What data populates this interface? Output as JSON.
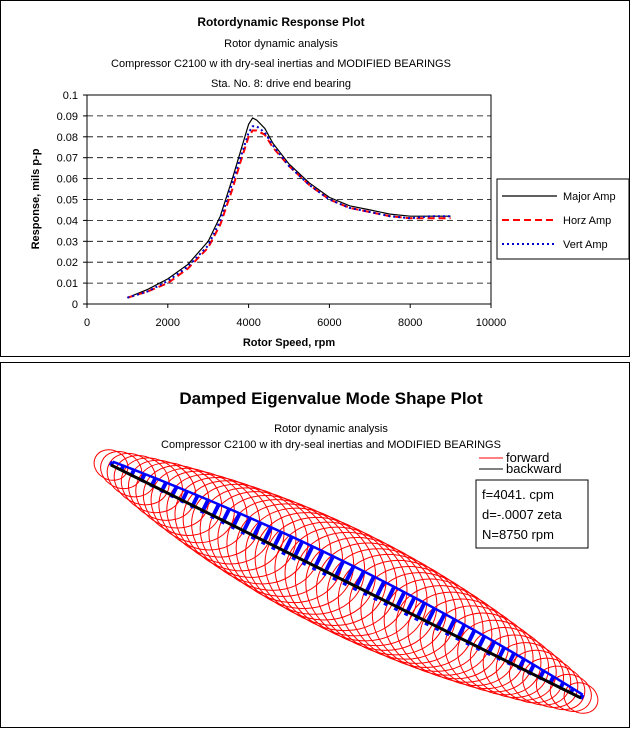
{
  "chart_data": [
    {
      "type": "line",
      "title": "Rotordynamic Response Plot",
      "subtitle_lines": [
        "Rotor dynamic analysis",
        "Compressor C2100 w ith dry-seal inertias and MODIFIED BEARINGS",
        "Sta. No. 8: drive end bearing"
      ],
      "xlabel": "Rotor Speed, rpm",
      "ylabel": "Response, mils p-p",
      "xlim": [
        0,
        10000
      ],
      "ylim": [
        0,
        0.1
      ],
      "xticks": [
        "0",
        "2000",
        "4000",
        "6000",
        "8000",
        "10000"
      ],
      "yticks": [
        "0",
        "0.01",
        "0.02",
        "0.03",
        "0.04",
        "0.05",
        "0.06",
        "0.07",
        "0.08",
        "0.09",
        "0.1"
      ],
      "grid": "horizontal dashed",
      "legend_position": "right",
      "series": [
        {
          "name": "Major Amp",
          "color": "#000000",
          "style": "solid",
          "x": [
            1000,
            1500,
            2000,
            2500,
            3000,
            3300,
            3600,
            3800,
            4000,
            4100,
            4200,
            4400,
            4600,
            5000,
            5500,
            6000,
            6500,
            7000,
            7500,
            8000,
            8500,
            9000
          ],
          "y": [
            0.003,
            0.007,
            0.012,
            0.019,
            0.03,
            0.042,
            0.06,
            0.073,
            0.086,
            0.089,
            0.088,
            0.084,
            0.077,
            0.067,
            0.058,
            0.051,
            0.047,
            0.045,
            0.043,
            0.042,
            0.042,
            0.042
          ]
        },
        {
          "name": "Horz Amp",
          "color": "#ff0000",
          "style": "dashed",
          "x": [
            1000,
            1500,
            2000,
            2500,
            3000,
            3300,
            3600,
            3800,
            4000,
            4100,
            4200,
            4400,
            4600,
            5000,
            5500,
            6000,
            6500,
            7000,
            7500,
            8000,
            8500,
            9000
          ],
          "y": [
            0.003,
            0.006,
            0.01,
            0.017,
            0.027,
            0.038,
            0.055,
            0.068,
            0.08,
            0.083,
            0.083,
            0.081,
            0.075,
            0.066,
            0.057,
            0.05,
            0.046,
            0.044,
            0.042,
            0.041,
            0.041,
            0.041
          ]
        },
        {
          "name": "Vert Amp",
          "color": "#0000cc",
          "style": "dotted",
          "x": [
            1000,
            1500,
            2000,
            2500,
            3000,
            3300,
            3600,
            3800,
            4000,
            4100,
            4200,
            4400,
            4600,
            5000,
            5500,
            6000,
            6500,
            7000,
            7500,
            8000,
            8500,
            9000
          ],
          "y": [
            0.003,
            0.006,
            0.011,
            0.018,
            0.028,
            0.04,
            0.058,
            0.07,
            0.082,
            0.085,
            0.085,
            0.082,
            0.076,
            0.066,
            0.057,
            0.05,
            0.046,
            0.044,
            0.042,
            0.041,
            0.042,
            0.042
          ]
        }
      ]
    },
    {
      "type": "diagram",
      "title": "Damped Eigenvalue Mode Shape Plot",
      "subtitle_lines": [
        "Rotor dynamic analysis",
        "Compressor C2100 w ith dry-seal inertias and MODIFIED BEARINGS"
      ],
      "legend": [
        {
          "name": "forward",
          "color": "#ff0000"
        },
        {
          "name": "backward",
          "color": "#000000"
        }
      ],
      "info_lines": [
        "f=4041. cpm",
        "d=-.0007 zeta",
        "N=8750 rpm"
      ],
      "colors": {
        "orbit": "#ff0000",
        "whirl": "#0000ff",
        "axis": "#000000"
      }
    }
  ]
}
